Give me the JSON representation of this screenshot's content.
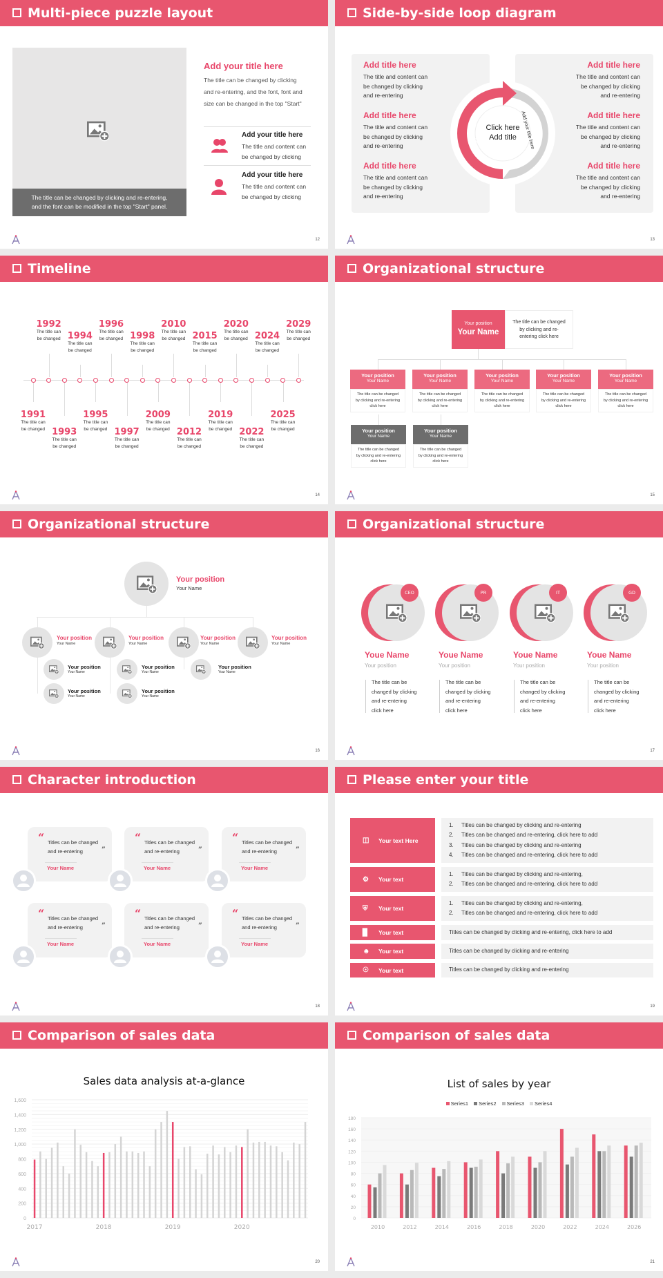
{
  "colors": {
    "accent": "#e8566f",
    "dark_gray": "#6d6d6d",
    "light_gray": "#f2f2f2"
  },
  "slides": [
    {
      "title": "Multi-piece puzzle layout",
      "page": "12",
      "caption": [
        "The title can be changed by clicking and re-entering,",
        "and the font can be modified in the top \"Start\" panel."
      ],
      "heading": "Add your title here",
      "paragraph": [
        "The title can be changed by clicking",
        "and re-entering, and the font, font and",
        "size can be changed in the top \"Start\""
      ],
      "items": [
        {
          "icon": "users-icon",
          "title": "Add your title here",
          "lines": [
            "The title and content can",
            "be changed by clicking"
          ]
        },
        {
          "icon": "user-icon",
          "title": "Add your title here",
          "lines": [
            "The title and content can",
            "be changed by clicking"
          ]
        }
      ]
    },
    {
      "title": "Side-by-side loop diagram",
      "page": "13",
      "left": [
        {
          "title": "Add title here",
          "lines": [
            "The title and content can",
            "be changed by clicking",
            "and re-entering"
          ]
        },
        {
          "title": "Add title here",
          "lines": [
            "The title and content can",
            "be changed by clicking",
            "and re-entering"
          ]
        },
        {
          "title": "Add title here",
          "lines": [
            "The title and content can",
            "be changed by clicking",
            "and re-entering"
          ]
        }
      ],
      "right": [
        {
          "title": "Add title here",
          "lines": [
            "The title and content can",
            "be changed by clicking",
            "and re-entering"
          ]
        },
        {
          "title": "Add title here",
          "lines": [
            "The title and content can",
            "be changed by clicking",
            "and re-entering"
          ]
        },
        {
          "title": "Add title here",
          "lines": [
            "The title and content can",
            "be changed by clicking",
            "and re-entering"
          ]
        }
      ],
      "center": [
        "Click here",
        "Add title"
      ],
      "arc_left": "Add your title here",
      "arc_right": "Add your title here"
    },
    {
      "title": "Timeline",
      "page": "14",
      "events": [
        {
          "year": "1991",
          "pos": "bottom",
          "lines": [
            "The title can",
            "be changed"
          ]
        },
        {
          "year": "1992",
          "pos": "top",
          "lines": [
            "The title can",
            "be changed"
          ]
        },
        {
          "year": "1993",
          "pos": "bottom2",
          "lines": [
            "The title can",
            "be changed"
          ]
        },
        {
          "year": "1994",
          "pos": "top2",
          "lines": [
            "The title can",
            "be changed"
          ]
        },
        {
          "year": "1995",
          "pos": "bottom",
          "lines": [
            "The title can",
            "be changed"
          ]
        },
        {
          "year": "1996",
          "pos": "top",
          "lines": [
            "The title can",
            "be changed"
          ]
        },
        {
          "year": "1997",
          "pos": "bottom2",
          "lines": [
            "The title can",
            "be changed"
          ]
        },
        {
          "year": "1998",
          "pos": "top2",
          "lines": [
            "The title can",
            "be changed"
          ]
        },
        {
          "year": "2009",
          "pos": "bottom",
          "lines": [
            "The title can",
            "be changed"
          ]
        },
        {
          "year": "2010",
          "pos": "top",
          "lines": [
            "The title can",
            "be changed"
          ]
        },
        {
          "year": "2012",
          "pos": "bottom2",
          "lines": [
            "The title can",
            "be changed"
          ]
        },
        {
          "year": "2015",
          "pos": "top2",
          "lines": [
            "The title can",
            "be changed"
          ]
        },
        {
          "year": "2019",
          "pos": "bottom",
          "lines": [
            "The title can",
            "be changed"
          ]
        },
        {
          "year": "2020",
          "pos": "top",
          "lines": [
            "The title can",
            "be changed"
          ]
        },
        {
          "year": "2022",
          "pos": "bottom2",
          "lines": [
            "The title can",
            "be changed"
          ]
        },
        {
          "year": "2024",
          "pos": "top2",
          "lines": [
            "The title can",
            "be changed"
          ]
        },
        {
          "year": "2025",
          "pos": "bottom",
          "lines": [
            "The title can",
            "be changed"
          ]
        },
        {
          "year": "2029",
          "pos": "top",
          "lines": [
            "The title can",
            "be changed"
          ]
        }
      ]
    },
    {
      "title": "Organizational structure",
      "page": "15",
      "top": {
        "position": "Your position",
        "name": "Your Name",
        "desc": [
          "The title can be changed",
          "by clicking and re-",
          "entering click here"
        ]
      },
      "level2": [
        {
          "position": "Your position",
          "name": "Your Name",
          "desc": [
            "The title can be changed",
            "by clicking and re-entering",
            "click here"
          ]
        },
        {
          "position": "Your position",
          "name": "Your Name",
          "desc": [
            "The title can be changed",
            "by clicking and re-entering",
            "click here"
          ]
        },
        {
          "position": "Your position",
          "name": "Your Name",
          "desc": [
            "The title can be changed",
            "by clicking and re-entering",
            "click here"
          ]
        },
        {
          "position": "Your position",
          "name": "Your Name",
          "desc": [
            "The title can be changed",
            "by clicking and re-entering",
            "click here"
          ]
        },
        {
          "position": "Your position",
          "name": "Your Name",
          "desc": [
            "The title can be changed",
            "by clicking and re-entering",
            "click here"
          ]
        }
      ],
      "level3": [
        {
          "position": "Your position",
          "name": "Your Name",
          "desc": [
            "The title can be changed",
            "by clicking and re-entering",
            "click here"
          ]
        },
        {
          "position": "Your position",
          "name": "Your Name",
          "desc": [
            "The title can be changed",
            "by clicking and re-entering",
            "click here"
          ]
        }
      ]
    },
    {
      "title": "Organizational structure",
      "page": "16",
      "top": {
        "position": "Your position",
        "name": "Your Name"
      },
      "level2": [
        {
          "position": "Your position",
          "name": "Your Name"
        },
        {
          "position": "Your position",
          "name": "Your Name"
        },
        {
          "position": "Your position",
          "name": "Your Name"
        },
        {
          "position": "Your position",
          "name": "Your Name"
        }
      ],
      "level3": [
        {
          "position": "Your position",
          "name": "Your Name"
        },
        {
          "position": "Your position",
          "name": "Your Name"
        },
        {
          "position": "Your position",
          "name": "Your Name"
        },
        {
          "position": "Your position",
          "name": "Your Name"
        },
        {
          "position": "Your position",
          "name": "Your Name"
        }
      ]
    },
    {
      "title": "Organizational structure",
      "page": "17",
      "members": [
        {
          "badge": "CEO",
          "name": "Youe Name",
          "position": "Your position",
          "lines": [
            "The title can be",
            "changed by clicking",
            "and re-entering",
            "click here"
          ]
        },
        {
          "badge": "PR",
          "name": "Youe Name",
          "position": "Your position",
          "lines": [
            "The title can be",
            "changed by clicking",
            "and re-entering",
            "click here"
          ]
        },
        {
          "badge": "IT",
          "name": "Youe Name",
          "position": "Your position",
          "lines": [
            "The title can be",
            "changed by clicking",
            "and re-entering",
            "click here"
          ]
        },
        {
          "badge": "GD",
          "name": "Youe Name",
          "position": "Your position",
          "lines": [
            "The title can be",
            "changed by clicking",
            "and re-entering",
            "click here"
          ]
        }
      ]
    },
    {
      "title": "Character introduction",
      "page": "18",
      "cards": [
        {
          "lines": [
            "Titles can be changed",
            "and re-entering"
          ],
          "name": "Your Name"
        },
        {
          "lines": [
            "Titles can be changed",
            "and re-entering"
          ],
          "name": "Your Name"
        },
        {
          "lines": [
            "Titles can be changed",
            "and re-entering"
          ],
          "name": "Your Name"
        },
        {
          "lines": [
            "Titles can be changed",
            "and re-entering"
          ],
          "name": "Your Name"
        },
        {
          "lines": [
            "Titles can be changed",
            "and re-entering"
          ],
          "name": "Your Name"
        },
        {
          "lines": [
            "Titles can be changed",
            "and re-entering"
          ],
          "name": "Your Name"
        }
      ]
    },
    {
      "title": "Please enter your title",
      "page": "19",
      "rows": [
        {
          "icon": "presentation-icon",
          "label": "Your text Here",
          "numbered": true,
          "items": [
            "Titles can be changed by clicking and re-entering",
            "Titles can be changed and re-entering, click here to add",
            "Titles can be changed by clicking and re-entering",
            "Titles can be changed and re-entering, click here to add"
          ]
        },
        {
          "icon": "user-settings-icon",
          "label": "Your text",
          "numbered": true,
          "items": [
            "Titles can be changed by clicking and re-entering,",
            "Titles can be changed and re-entering, click here to add"
          ]
        },
        {
          "icon": "shield-icon",
          "label": "Your text",
          "numbered": true,
          "items": [
            "Titles can be changed by clicking and re-entering,",
            "Titles can be changed and re-entering, click here to add"
          ]
        },
        {
          "icon": "bar-chart-icon",
          "label": "Your text",
          "numbered": false,
          "items": [
            "Titles can be changed by clicking and re-entering, click here to add"
          ]
        },
        {
          "icon": "team-icon",
          "label": "Your text",
          "numbered": false,
          "items": [
            "Titles can be changed by clicking and re-entering"
          ]
        },
        {
          "icon": "hand-coin-icon",
          "label": "Your text",
          "numbered": false,
          "items": [
            "Titles can be changed by clicking and re-entering"
          ]
        }
      ]
    },
    {
      "title": "Comparison of sales data",
      "page": "20"
    },
    {
      "title": "Comparison of sales data",
      "page": "21"
    }
  ],
  "chart_data": [
    {
      "type": "bar",
      "title": "Sales data analysis at-a-glance",
      "ylim": [
        0,
        1600
      ],
      "yticks": [
        "0",
        "200",
        "400",
        "600",
        "800",
        "1,000",
        "1,200",
        "1,400",
        "1,600"
      ],
      "grid": true,
      "x_labels": [
        "2017",
        "2018",
        "2019",
        "2020"
      ],
      "bars_per_label": 12,
      "highlight": "first bar of each year",
      "values": [
        790,
        900,
        800,
        950,
        1020,
        700,
        600,
        1200,
        990,
        890,
        770,
        700,
        880,
        890,
        1000,
        1100,
        900,
        900,
        880,
        900,
        700,
        1200,
        1300,
        1450,
        1300,
        800,
        960,
        970,
        660,
        590,
        870,
        980,
        860,
        960,
        890,
        980,
        960,
        1200,
        1020,
        1030,
        1030,
        980,
        970,
        890,
        780,
        1020,
        1000,
        1300
      ],
      "colors": {
        "highlight": "#e8466a",
        "normal": "#d4d4d4"
      }
    },
    {
      "type": "bar",
      "title": "List of sales by year",
      "ylim": [
        0,
        180
      ],
      "yticks": [
        "0",
        "20",
        "40",
        "60",
        "80",
        "100",
        "120",
        "140",
        "160",
        "180"
      ],
      "legend": "top",
      "categories": [
        "2010",
        "2012",
        "2014",
        "2016",
        "2018",
        "2020",
        "2022",
        "2024",
        "2026"
      ],
      "series": [
        {
          "name": "Series1",
          "color": "#e8566f",
          "values": [
            60,
            80,
            90,
            100,
            120,
            110,
            160,
            150,
            130
          ]
        },
        {
          "name": "Series2",
          "color": "#7a7a7a",
          "values": [
            55,
            60,
            75,
            90,
            80,
            90,
            96,
            120,
            110
          ]
        },
        {
          "name": "Series3",
          "color": "#b9b9b9",
          "values": [
            80,
            86,
            88,
            92,
            98,
            100,
            110,
            120,
            130
          ]
        },
        {
          "name": "Series4",
          "color": "#d9d9d9",
          "values": [
            95,
            99,
            102,
            105,
            110,
            120,
            126,
            130,
            135
          ]
        }
      ]
    }
  ]
}
